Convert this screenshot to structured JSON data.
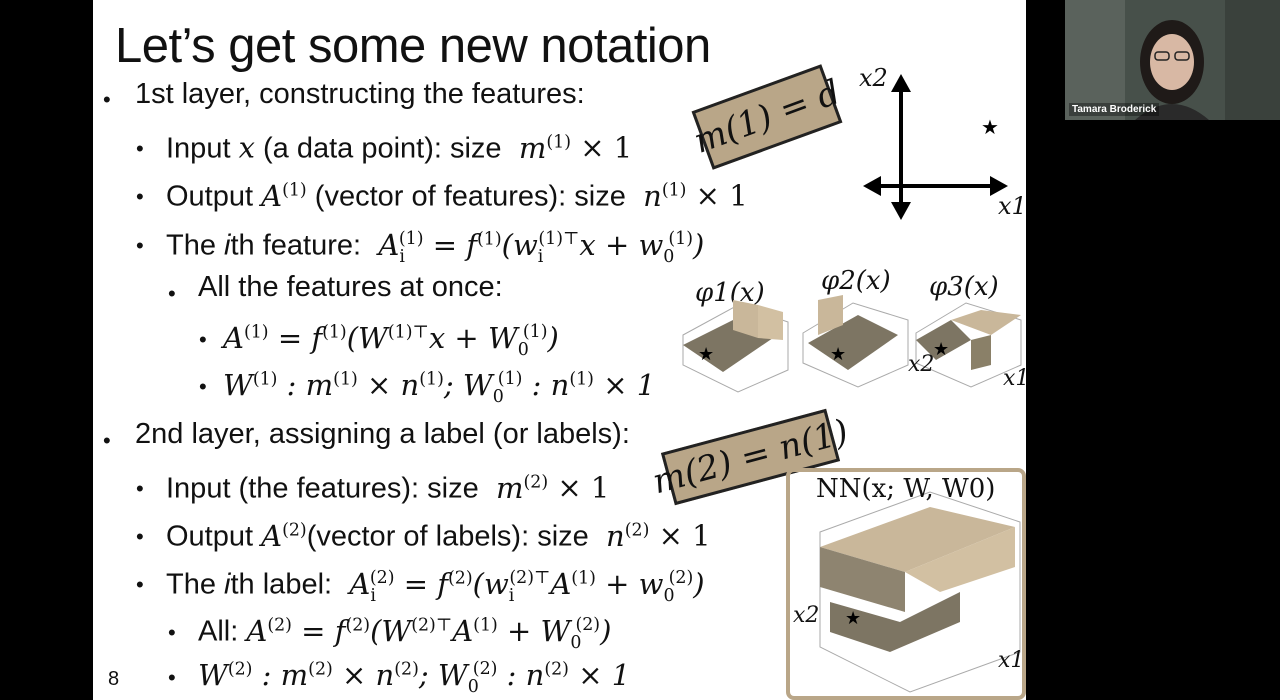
{
  "slide": {
    "title": "Let’s get some new notation",
    "page_number": "8",
    "layer1": {
      "heading": "1st layer, constructing the features:",
      "input_label": "Input",
      "input_var": "x",
      "input_desc": "(a data point): size",
      "output_label": "Output",
      "output_desc": "(vector of features): size",
      "ith_feature_pre": "The",
      "ith_feature_i": "i",
      "ith_feature_post": "th feature:",
      "all_features": "All the features at once:"
    },
    "layer2": {
      "heading": "2nd layer, assigning a label (or labels):",
      "input_desc": "Input (the features): size",
      "output_label": "Output",
      "output_desc": "(vector of labels): size",
      "ith_label_pre": "The",
      "ith_label_i": "i",
      "ith_label_post": "th label:",
      "all_label": "All:"
    },
    "boxes": {
      "box1": "m(1) = d",
      "box2": "m(2) = n(1)"
    },
    "plots": {
      "axis_x1": "x1",
      "axis_x2": "x2",
      "phi1": "φ1(x)",
      "phi2": "φ2(x)",
      "phi3": "φ3(x)",
      "nn": "NN(x; W, W0)",
      "star": "★"
    }
  },
  "webcam": {
    "name": "Tamara Broderick"
  }
}
